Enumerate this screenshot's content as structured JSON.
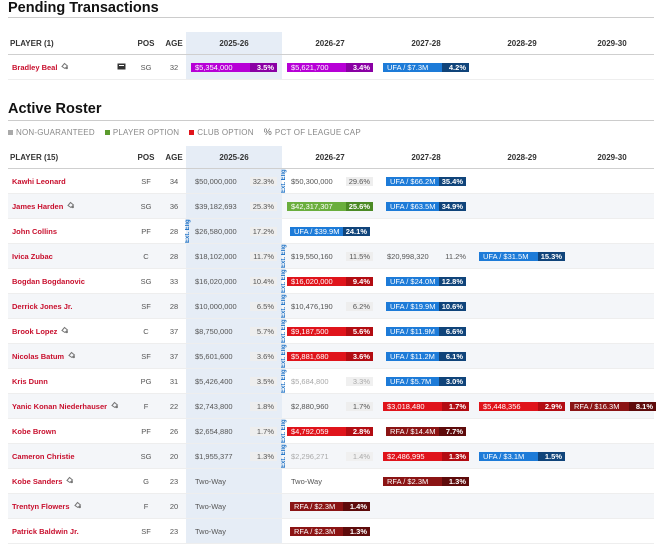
{
  "pending": {
    "title": "Pending Transactions",
    "headers": [
      "PLAYER (1)",
      "POS",
      "AGE",
      "2025-26",
      "2026-27",
      "2027-28",
      "2028-29",
      "2029-30"
    ],
    "rows": [
      {
        "name": "Bradley Beal",
        "pos": "SG",
        "age": "32",
        "cells": [
          {
            "amt": "$5,354,000",
            "pct": "3.5%",
            "kind": "filled",
            "bg": "#b700d6",
            "pbg": "#8a00a4"
          },
          {
            "amt": "$5,621,700",
            "pct": "3.4%",
            "kind": "filled",
            "bg": "#b700d6",
            "pbg": "#8a00a4"
          },
          {
            "amt": "UFA / $7.3M",
            "pct": "4.2%",
            "kind": "filled",
            "bg": "#1d7bd8",
            "pbg": "#10447a"
          },
          null,
          null
        ]
      }
    ]
  },
  "active": {
    "title": "Active Roster",
    "legend": [
      {
        "label": "NON-GUARANTEED",
        "color": "#aaaaaa"
      },
      {
        "label": "PLAYER OPTION",
        "color": "#5b9b2d"
      },
      {
        "label": "CLUB OPTION",
        "color": "#e0141b"
      },
      {
        "label": "PCT OF LEAGUE CAP",
        "icon": "%"
      }
    ],
    "headers": [
      "PLAYER (15)",
      "POS",
      "AGE",
      "2025-26",
      "2026-27",
      "2027-28",
      "2028-29",
      "2029-30"
    ],
    "ext_label": "Ext. Elig.",
    "rows": [
      {
        "name": "Kawhi Leonard",
        "pos": "SF",
        "age": "34",
        "cells": [
          {
            "amt": "$50,000,000",
            "pct": "32.3%",
            "kind": "plain"
          },
          {
            "amt": "$50,300,000",
            "pct": "29.6%",
            "kind": "plain",
            "ext": true
          },
          {
            "amt": "UFA / $66.2M",
            "pct": "35.4%",
            "kind": "filled",
            "bg": "#1d7bd8",
            "pbg": "#10447a",
            "fit": true
          },
          null,
          null
        ]
      },
      {
        "name": "James Harden",
        "pos": "SG",
        "age": "36",
        "icon": true,
        "cells": [
          {
            "amt": "$39,182,693",
            "pct": "25.3%",
            "kind": "plain"
          },
          {
            "amt": "$42,317,307",
            "pct": "25.6%",
            "kind": "filled",
            "bg": "#6aae3d",
            "pbg": "#4b8a25"
          },
          {
            "amt": "UFA / $63.5M",
            "pct": "34.9%",
            "kind": "filled",
            "bg": "#1d7bd8",
            "pbg": "#10447a",
            "fit": true
          },
          null,
          null
        ]
      },
      {
        "name": "John Collins",
        "pos": "PF",
        "age": "28",
        "cells": [
          {
            "amt": "$26,580,000",
            "pct": "17.2%",
            "kind": "plain",
            "ext": true
          },
          {
            "amt": "UFA / $39.9M",
            "pct": "24.1%",
            "kind": "filled",
            "bg": "#1d7bd8",
            "pbg": "#10447a",
            "fit": true
          },
          null,
          null,
          null
        ]
      },
      {
        "name": "Ivica Zubac",
        "pos": "C",
        "age": "28",
        "cells": [
          {
            "amt": "$18,102,000",
            "pct": "11.7%",
            "kind": "plain"
          },
          {
            "amt": "$19,550,160",
            "pct": "11.5%",
            "kind": "plain",
            "ext": true
          },
          {
            "amt": "$20,998,320",
            "pct": "11.2%",
            "kind": "plain",
            "flat": true
          },
          {
            "amt": "UFA / $31.5M",
            "pct": "15.3%",
            "kind": "filled",
            "bg": "#1d7bd8",
            "pbg": "#10447a"
          },
          null
        ]
      },
      {
        "name": "Bogdan Bogdanovic",
        "pos": "SG",
        "age": "33",
        "cells": [
          {
            "amt": "$16,020,000",
            "pct": "10.4%",
            "kind": "plain"
          },
          {
            "amt": "$16,020,000",
            "pct": "9.4%",
            "kind": "filled",
            "bg": "#e0141b",
            "pbg": "#b30c12",
            "ext": true
          },
          {
            "amt": "UFA / $24.0M",
            "pct": "12.8%",
            "kind": "filled",
            "bg": "#1d7bd8",
            "pbg": "#10447a",
            "fit": true
          },
          null,
          null
        ]
      },
      {
        "name": "Derrick Jones Jr.",
        "pos": "SF",
        "age": "28",
        "cells": [
          {
            "amt": "$10,000,000",
            "pct": "6.5%",
            "kind": "plain"
          },
          {
            "amt": "$10,476,190",
            "pct": "6.2%",
            "kind": "plain",
            "ext": true
          },
          {
            "amt": "UFA / $19.9M",
            "pct": "10.6%",
            "kind": "filled",
            "bg": "#1d7bd8",
            "pbg": "#10447a",
            "fit": true
          },
          null,
          null
        ]
      },
      {
        "name": "Brook Lopez",
        "pos": "C",
        "age": "37",
        "icon": true,
        "cells": [
          {
            "amt": "$8,750,000",
            "pct": "5.7%",
            "kind": "plain"
          },
          {
            "amt": "$9,187,500",
            "pct": "5.6%",
            "kind": "filled",
            "bg": "#e0141b",
            "pbg": "#b30c12",
            "ext": true
          },
          {
            "amt": "UFA / $11.9M",
            "pct": "6.6%",
            "kind": "filled",
            "bg": "#1d7bd8",
            "pbg": "#10447a",
            "fit": true
          },
          null,
          null
        ]
      },
      {
        "name": "Nicolas Batum",
        "pos": "SF",
        "age": "37",
        "icon": true,
        "cells": [
          {
            "amt": "$5,601,600",
            "pct": "3.6%",
            "kind": "plain"
          },
          {
            "amt": "$5,881,680",
            "pct": "3.6%",
            "kind": "filled",
            "bg": "#e0141b",
            "pbg": "#b30c12",
            "ext": true
          },
          {
            "amt": "UFA / $11.2M",
            "pct": "6.1%",
            "kind": "filled",
            "bg": "#1d7bd8",
            "pbg": "#10447a",
            "fit": true
          },
          null,
          null
        ]
      },
      {
        "name": "Kris Dunn",
        "pos": "PG",
        "age": "31",
        "cells": [
          {
            "amt": "$5,426,400",
            "pct": "3.5%",
            "kind": "plain"
          },
          {
            "amt": "$5,684,800",
            "pct": "3.3%",
            "kind": "faded",
            "ext": true
          },
          {
            "amt": "UFA / $5.7M",
            "pct": "3.0%",
            "kind": "filled",
            "bg": "#1d7bd8",
            "pbg": "#10447a",
            "fit": true
          },
          null,
          null
        ]
      },
      {
        "name": "Yanic Konan Niederhauser",
        "pos": "F",
        "age": "22",
        "icon": true,
        "cells": [
          {
            "amt": "$2,743,800",
            "pct": "1.8%",
            "kind": "plain"
          },
          {
            "amt": "$2,880,960",
            "pct": "1.7%",
            "kind": "plain"
          },
          {
            "amt": "$3,018,480",
            "pct": "1.7%",
            "kind": "filled",
            "bg": "#e0141b",
            "pbg": "#b30c12"
          },
          {
            "amt": "$5,448,356",
            "pct": "2.9%",
            "kind": "filled",
            "bg": "#e0141b",
            "pbg": "#b30c12"
          },
          {
            "amt": "RFA / $16.3M",
            "pct": "8.1%",
            "kind": "filled",
            "bg": "#8b1414",
            "pbg": "#5e0b0b"
          }
        ]
      },
      {
        "name": "Kobe Brown",
        "pos": "PF",
        "age": "26",
        "cells": [
          {
            "amt": "$2,654,880",
            "pct": "1.7%",
            "kind": "plain"
          },
          {
            "amt": "$4,792,059",
            "pct": "2.8%",
            "kind": "filled",
            "bg": "#e0141b",
            "pbg": "#b30c12",
            "ext": true
          },
          {
            "amt": "RFA / $14.4M",
            "pct": "7.7%",
            "kind": "filled",
            "bg": "#8b1414",
            "pbg": "#5e0b0b",
            "fit": true
          },
          null,
          null
        ]
      },
      {
        "name": "Cameron Christie",
        "pos": "SG",
        "age": "20",
        "cells": [
          {
            "amt": "$1,955,377",
            "pct": "1.3%",
            "kind": "plain"
          },
          {
            "amt": "$2,296,271",
            "pct": "1.4%",
            "kind": "faded",
            "ext": true
          },
          {
            "amt": "$2,486,995",
            "pct": "1.3%",
            "kind": "filled",
            "bg": "#e0141b",
            "pbg": "#b30c12"
          },
          {
            "amt": "UFA / $3.1M",
            "pct": "1.5%",
            "kind": "filled",
            "bg": "#1d7bd8",
            "pbg": "#10447a"
          },
          null
        ]
      },
      {
        "name": "Kobe Sanders",
        "pos": "G",
        "age": "23",
        "icon": true,
        "cells": [
          {
            "amt": "Two-Way",
            "pct": "",
            "kind": "plain"
          },
          {
            "amt": "Two-Way",
            "pct": "",
            "kind": "plain"
          },
          {
            "amt": "RFA / $2.3M",
            "pct": "1.3%",
            "kind": "filled",
            "bg": "#8b1414",
            "pbg": "#5e0b0b"
          },
          null,
          null
        ]
      },
      {
        "name": "Trentyn Flowers",
        "pos": "F",
        "age": "20",
        "icon": true,
        "cells": [
          {
            "amt": "Two-Way",
            "pct": "",
            "kind": "plain"
          },
          {
            "amt": "RFA / $2.3M",
            "pct": "1.4%",
            "kind": "filled",
            "bg": "#8b1414",
            "pbg": "#5e0b0b",
            "fit": true
          },
          null,
          null,
          null
        ]
      },
      {
        "name": "Patrick Baldwin Jr.",
        "pos": "SF",
        "age": "23",
        "cells": [
          {
            "amt": "Two-Way",
            "pct": "",
            "kind": "plain"
          },
          {
            "amt": "RFA / $2.3M",
            "pct": "1.3%",
            "kind": "filled",
            "bg": "#8b1414",
            "pbg": "#5e0b0b",
            "fit": true
          },
          null,
          null,
          null
        ]
      }
    ]
  }
}
